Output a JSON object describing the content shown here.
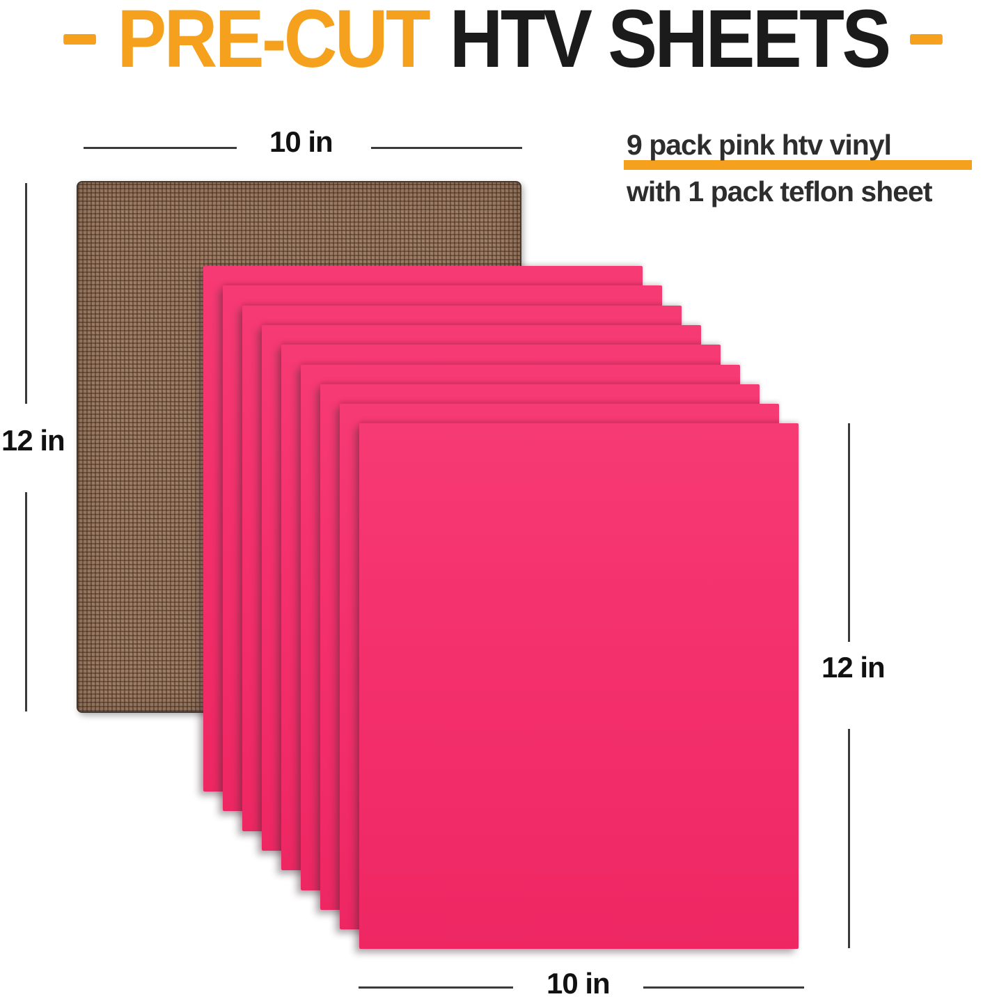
{
  "title": {
    "dash_left": "-",
    "part1": "PRE-CUT",
    "part2": "HTV SHEETS",
    "dash_right": "-"
  },
  "subtitle": {
    "line1": "9 pack pink htv vinyl",
    "line2": "with 1 pack teflon sheet"
  },
  "dimensions": {
    "top": "10 in",
    "left": "12 in",
    "right": "12 in",
    "bottom": "10 in"
  },
  "sheets": {
    "pink_count": 9,
    "teflon_count": 1,
    "pink_sheet_name": "pink htv vinyl sheet",
    "teflon_sheet_name": "teflon sheet"
  },
  "colors": {
    "accent_orange": "#F5A11D",
    "pink": "#F4306C",
    "teflon_brown": "#9B7A61",
    "title_black": "#1B1B1B",
    "text_dark": "#2D2D2D"
  }
}
